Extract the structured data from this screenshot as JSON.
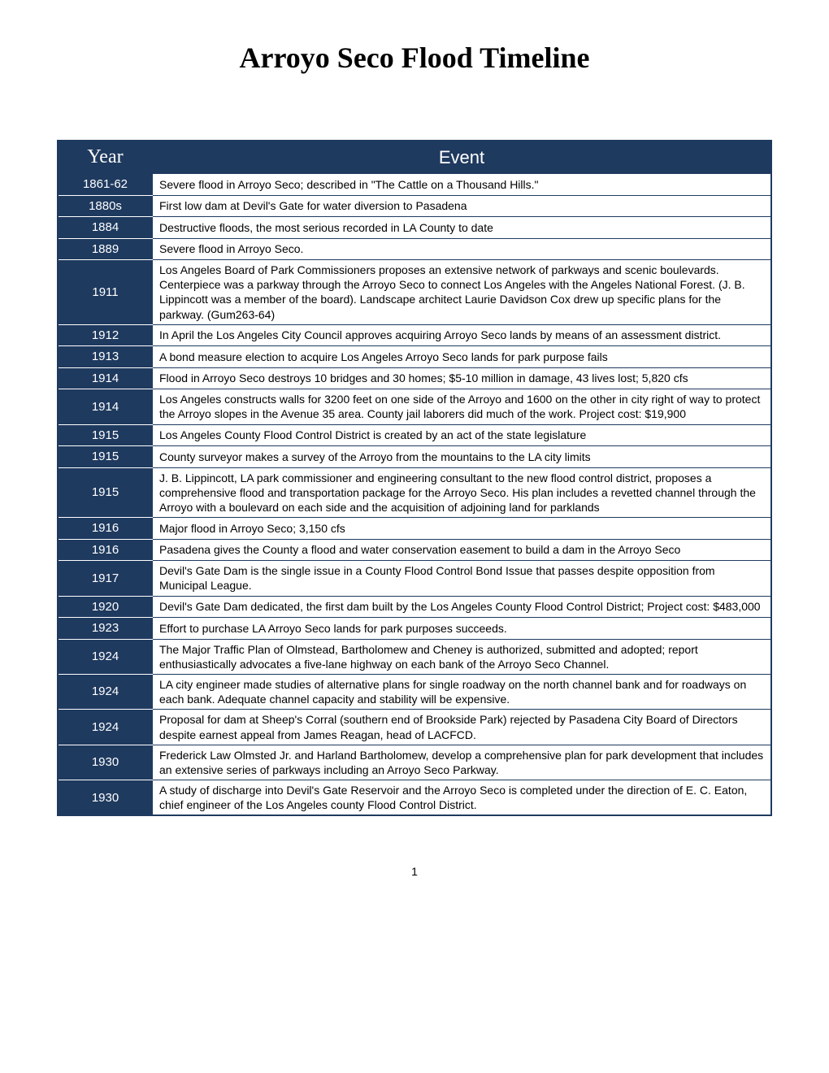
{
  "title": "Arroyo Seco Flood Timeline",
  "table": {
    "headers": {
      "year": "Year",
      "event": "Event"
    },
    "rows": [
      {
        "year": "1861-62",
        "event": "Severe flood in Arroyo Seco; described in \"The Cattle on a Thousand Hills.\""
      },
      {
        "year": "1880s",
        "event": "First low dam at Devil's Gate for water diversion to Pasadena"
      },
      {
        "year": "1884",
        "event": "Destructive floods, the most serious recorded in LA County to date"
      },
      {
        "year": "1889",
        "event": "Severe flood in Arroyo Seco."
      },
      {
        "year": "1911",
        "event": "Los Angeles Board of Park Commissioners proposes an extensive network of parkways and scenic boulevards. Centerpiece was a parkway through the Arroyo Seco to connect Los Angeles with the Angeles National Forest. (J. B. Lippincott was a member of the board). Landscape architect Laurie Davidson Cox drew up specific plans for the parkway. (Gum263-64)"
      },
      {
        "year": "1912",
        "event": "In April the Los Angeles City Council approves acquiring Arroyo Seco lands by means of an assessment district."
      },
      {
        "year": "1913",
        "event": "A bond measure election to acquire Los Angeles Arroyo Seco lands for park purpose fails"
      },
      {
        "year": "1914",
        "event": "Flood in Arroyo Seco destroys 10 bridges and 30 homes; $5-10 million in damage, 43 lives lost; 5,820 cfs"
      },
      {
        "year": "1914",
        "event": "Los Angeles constructs walls for 3200 feet on one side of the Arroyo and 1600 on the other in city right of way to protect the Arroyo slopes in the Avenue 35 area. County jail laborers did much of the work. Project cost: $19,900"
      },
      {
        "year": "1915",
        "event": "Los Angeles County Flood Control District is created by an act of the state legislature"
      },
      {
        "year": "1915",
        "event": "County surveyor makes a survey of the Arroyo from the mountains to the LA city limits"
      },
      {
        "year": "1915",
        "event": "J. B. Lippincott, LA park commissioner and engineering consultant to the new flood control district, proposes a comprehensive flood and transportation package for the Arroyo Seco. His plan includes a revetted channel through the Arroyo with a boulevard on each side and the acquisition of adjoining land for parklands"
      },
      {
        "year": "1916",
        "event": "Major flood in Arroyo Seco; 3,150 cfs"
      },
      {
        "year": "1916",
        "event": "Pasadena gives the County a flood and water conservation easement to build a dam in the Arroyo Seco"
      },
      {
        "year": "1917",
        "event": "Devil's Gate Dam is the single issue in a County Flood Control Bond Issue that passes despite opposition from Municipal League."
      },
      {
        "year": "1920",
        "event": "Devil's Gate Dam dedicated, the first dam built by the Los Angeles County Flood Control District; Project cost: $483,000"
      },
      {
        "year": "1923",
        "event": "Effort to purchase LA Arroyo Seco lands for park purposes succeeds."
      },
      {
        "year": "1924",
        "event": "The Major Traffic Plan of Olmstead, Bartholomew and Cheney is authorized, submitted and adopted; report enthusiastically advocates a five-lane highway on each bank of the Arroyo Seco Channel."
      },
      {
        "year": "1924",
        "event": "LA city engineer made studies of alternative plans for single roadway on the north channel bank and for roadways on each bank.  Adequate channel capacity and stability will be expensive."
      },
      {
        "year": "1924",
        "event": "Proposal for dam at Sheep's Corral (southern end of Brookside Park) rejected by Pasadena City Board of Directors despite earnest appeal from James Reagan, head of LACFCD."
      },
      {
        "year": "1930",
        "event": "Frederick Law Olmsted Jr. and Harland Bartholomew, develop a comprehensive plan for park development that includes an extensive series of parkways including an Arroyo Seco Parkway."
      },
      {
        "year": "1930",
        "event": "A study of discharge into Devil's Gate Reservoir and the Arroyo Seco is completed under the direction of E. C. Eaton, chief engineer of the Los Angeles county Flood Control District."
      }
    ]
  },
  "page_number": "1",
  "colors": {
    "header_bg": "#1f3a5f",
    "header_text": "#ffffff",
    "body_bg": "#ffffff",
    "body_text": "#000000",
    "border": "#1f3a5f"
  }
}
